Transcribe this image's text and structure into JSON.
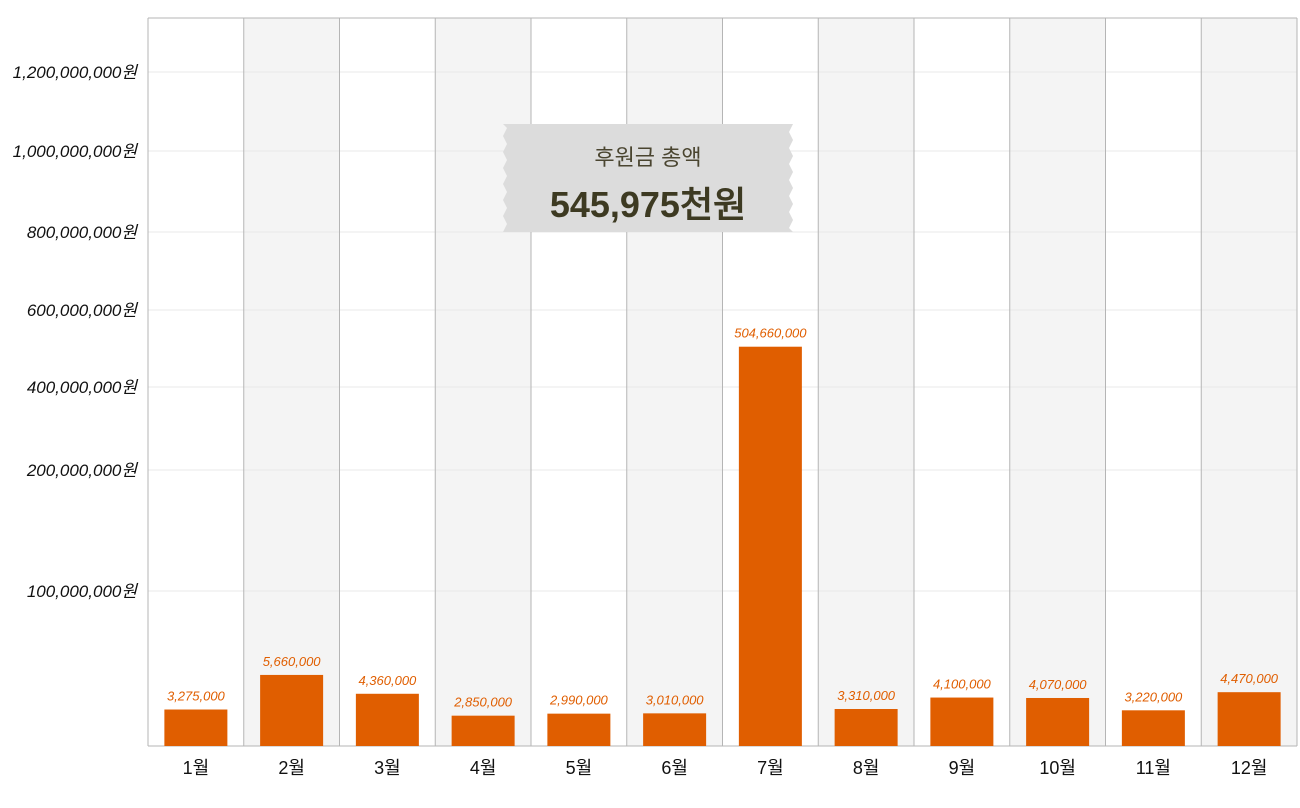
{
  "chart_data": {
    "type": "bar",
    "categories": [
      "1월",
      "2월",
      "3월",
      "4월",
      "5월",
      "6월",
      "7월",
      "8월",
      "9월",
      "10월",
      "11월",
      "12월"
    ],
    "values": [
      3275000,
      5660000,
      4360000,
      2850000,
      2990000,
      3010000,
      504660000,
      3310000,
      4100000,
      4070000,
      3220000,
      4470000
    ],
    "data_labels": [
      "3,275,000",
      "5,660,000",
      "4,360,000",
      "2,850,000",
      "2,990,000",
      "3,010,000",
      "504,660,000",
      "3,310,000",
      "4,100,000",
      "4,070,000",
      "3,220,000",
      "4,470,000"
    ],
    "y_ticks": [
      {
        "value": 100000000,
        "label": "100,000,000원"
      },
      {
        "value": 200000000,
        "label": "200,000,000원"
      },
      {
        "value": 400000000,
        "label": "400,000,000원"
      },
      {
        "value": 600000000,
        "label": "600,000,000원"
      },
      {
        "value": 800000000,
        "label": "800,000,000원"
      },
      {
        "value": 1000000000,
        "label": "1,000,000,000원"
      },
      {
        "value": 1200000000,
        "label": "1,200,000,000원"
      }
    ],
    "ylim": [
      0,
      1350000000
    ],
    "y_scale": "nonlinear (compressed low range)",
    "grid": true,
    "title": "",
    "xlabel": "",
    "ylabel": "",
    "colors": {
      "bar": "#e05e00",
      "label": "#e05e00",
      "alt_column": "#f4f4f4"
    }
  },
  "summary_box": {
    "title": "후원금 총액",
    "value": "545,975천원"
  }
}
